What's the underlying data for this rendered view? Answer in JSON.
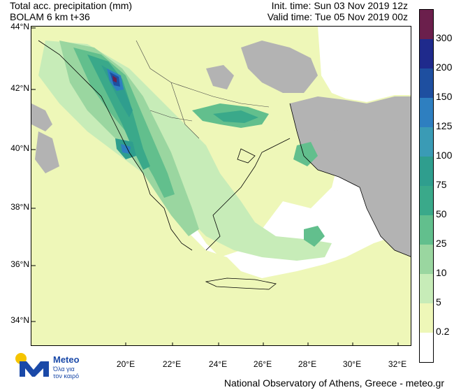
{
  "header": {
    "title_line1": "Total acc. precipitation (mm)",
    "title_line2": "BOLAM 6 km t+36",
    "init_time": "Init. time: Sun 03 Nov 2019 12z",
    "valid_time": "Valid time: Tue 05 Nov 2019 00z"
  },
  "axes": {
    "lat_labels": [
      "44°N",
      "42°N",
      "40°N",
      "38°N",
      "36°N",
      "34°N"
    ],
    "lon_labels": [
      "20°E",
      "22°E",
      "24°E",
      "26°E",
      "28°E",
      "30°E",
      "32°E"
    ]
  },
  "colorbar": {
    "labels": [
      "300",
      "200",
      "150",
      "125",
      "100",
      "75",
      "50",
      "25",
      "10",
      "5",
      "0.2"
    ],
    "colors": [
      "#6b1f4c",
      "#1f2a8c",
      "#1e4fa0",
      "#2e7fc0",
      "#3a9bb5",
      "#2f9e8e",
      "#3aa98a",
      "#62bf8d",
      "#9ad6a0",
      "#c7ecb8",
      "#eef7b8",
      "#ffffff"
    ]
  },
  "map_colors": {
    "sea": "#ffffff",
    "land_no_data": "#b3b3b3",
    "precip_light": "#eef7b8",
    "precip_5": "#c7ecb8",
    "precip_10": "#9ad6a0",
    "precip_25": "#62bf8d",
    "precip_50": "#3aa98a",
    "precip_100": "#2f9e8e",
    "precip_150": "#2e7fc0",
    "precip_200": "#1e4fa0",
    "precip_300": "#6b1f4c"
  },
  "logo": {
    "name": "Meteo",
    "tagline_1": "Όλα για",
    "tagline_2": "τον καιρό"
  },
  "footer": {
    "credit": "National Observatory of Athens, Greece - meteo.gr"
  }
}
